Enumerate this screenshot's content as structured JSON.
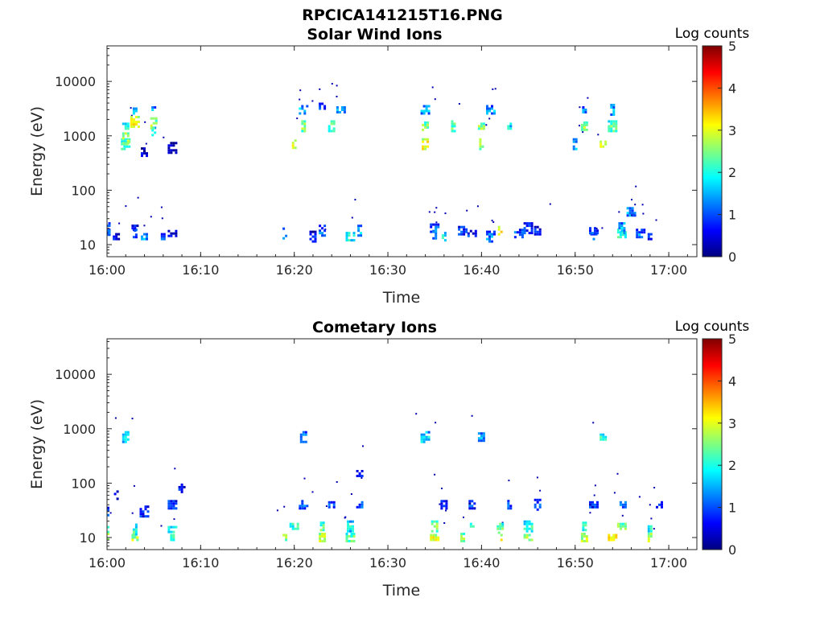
{
  "figure": {
    "title": "RPCICA141215T16.PNG"
  },
  "colors": {
    "colormap": [
      "#00007f",
      "#0000ff",
      "#007fff",
      "#00ffff",
      "#7fff7f",
      "#ffff00",
      "#ff7f00",
      "#ff0000",
      "#7f0000"
    ]
  },
  "chart_data": [
    {
      "type": "heatmap",
      "title": "Solar Wind Ions",
      "xlabel": "Time",
      "ylabel": "Energy (eV)",
      "x_scale": "time",
      "y_scale": "log",
      "xlim": [
        "16:00",
        "17:03"
      ],
      "ylim": [
        6,
        45000
      ],
      "xticks": [
        "16:00",
        "16:10",
        "16:20",
        "16:30",
        "16:40",
        "16:50",
        "17:00"
      ],
      "yticks": [
        "10",
        "100",
        "1000",
        "10000"
      ],
      "colorbar": {
        "label": "Log counts",
        "range": [
          0,
          5
        ],
        "ticks": [
          "0",
          "1",
          "2",
          "3",
          "4",
          "5"
        ]
      },
      "clusters": [
        {
          "t": "16:00",
          "e": 16,
          "v": 1.0
        },
        {
          "t": "16:00",
          "e": 20,
          "v": 1.4
        },
        {
          "t": "16:01",
          "e": 14,
          "v": 0.6
        },
        {
          "t": "16:02",
          "e": 700,
          "v": 2.4
        },
        {
          "t": "16:02",
          "e": 900,
          "v": 3.0
        },
        {
          "t": "16:02",
          "e": 1500,
          "v": 2.2
        },
        {
          "t": "16:03",
          "e": 1800,
          "v": 3.2
        },
        {
          "t": "16:03",
          "e": 3000,
          "v": 1.6
        },
        {
          "t": "16:03",
          "e": 16,
          "v": 1.2
        },
        {
          "t": "16:03",
          "e": 20,
          "v": 0.8
        },
        {
          "t": "16:04",
          "e": 14,
          "v": 1.4
        },
        {
          "t": "16:04",
          "e": 500,
          "v": 0.4
        },
        {
          "t": "16:05",
          "e": 1200,
          "v": 2.0
        },
        {
          "t": "16:05",
          "e": 1700,
          "v": 2.6
        },
        {
          "t": "16:05",
          "e": 3000,
          "v": 1.4
        },
        {
          "t": "16:06",
          "e": 14,
          "v": 1.0
        },
        {
          "t": "16:07",
          "e": 16,
          "v": 0.6
        },
        {
          "t": "16:07",
          "e": 600,
          "v": 0.5
        },
        {
          "t": "16:19",
          "e": 16,
          "v": 1.2
        },
        {
          "t": "16:20",
          "e": 700,
          "v": 2.8
        },
        {
          "t": "16:21",
          "e": 1500,
          "v": 2.6
        },
        {
          "t": "16:21",
          "e": 3000,
          "v": 1.6
        },
        {
          "t": "16:22",
          "e": 14,
          "v": 0.8
        },
        {
          "t": "16:23",
          "e": 18,
          "v": 1.2
        },
        {
          "t": "16:23",
          "e": 3500,
          "v": 1.0
        },
        {
          "t": "16:24",
          "e": 1500,
          "v": 2.4
        },
        {
          "t": "16:25",
          "e": 3000,
          "v": 1.4
        },
        {
          "t": "16:26",
          "e": 14,
          "v": 2.0
        },
        {
          "t": "16:27",
          "e": 18,
          "v": 1.6
        },
        {
          "t": "16:34",
          "e": 700,
          "v": 3.2
        },
        {
          "t": "16:34",
          "e": 1500,
          "v": 2.6
        },
        {
          "t": "16:34",
          "e": 3000,
          "v": 1.4
        },
        {
          "t": "16:35",
          "e": 16,
          "v": 1.6
        },
        {
          "t": "16:35",
          "e": 20,
          "v": 1.2
        },
        {
          "t": "16:36",
          "e": 14,
          "v": 2.0
        },
        {
          "t": "16:37",
          "e": 1500,
          "v": 2.4
        },
        {
          "t": "16:38",
          "e": 18,
          "v": 1.0
        },
        {
          "t": "16:39",
          "e": 16,
          "v": 0.8
        },
        {
          "t": "16:40",
          "e": 700,
          "v": 2.8
        },
        {
          "t": "16:40",
          "e": 1500,
          "v": 2.6
        },
        {
          "t": "16:41",
          "e": 3000,
          "v": 1.4
        },
        {
          "t": "16:41",
          "e": 14,
          "v": 1.4
        },
        {
          "t": "16:42",
          "e": 18,
          "v": 3.0
        },
        {
          "t": "16:43",
          "e": 1500,
          "v": 1.8
        },
        {
          "t": "16:44",
          "e": 16,
          "v": 1.2
        },
        {
          "t": "16:45",
          "e": 20,
          "v": 1.0
        },
        {
          "t": "16:46",
          "e": 18,
          "v": 0.8
        },
        {
          "t": "16:50",
          "e": 700,
          "v": 1.6
        },
        {
          "t": "16:51",
          "e": 1500,
          "v": 2.6
        },
        {
          "t": "16:51",
          "e": 3000,
          "v": 1.2
        },
        {
          "t": "16:52",
          "e": 14,
          "v": 1.2
        },
        {
          "t": "16:52",
          "e": 18,
          "v": 1.0
        },
        {
          "t": "16:53",
          "e": 700,
          "v": 3.2
        },
        {
          "t": "16:54",
          "e": 1500,
          "v": 2.4
        },
        {
          "t": "16:54",
          "e": 3000,
          "v": 1.6
        },
        {
          "t": "16:55",
          "e": 16,
          "v": 2.2
        },
        {
          "t": "16:55",
          "e": 20,
          "v": 1.6
        },
        {
          "t": "16:56",
          "e": 40,
          "v": 1.4
        },
        {
          "t": "16:57",
          "e": 16,
          "v": 1.2
        },
        {
          "t": "16:58",
          "e": 14,
          "v": 0.8
        }
      ]
    },
    {
      "type": "heatmap",
      "title": "Cometary Ions",
      "xlabel": "Time",
      "ylabel": "Energy (eV)",
      "x_scale": "time",
      "y_scale": "log",
      "xlim": [
        "16:00",
        "17:03"
      ],
      "ylim": [
        6,
        45000
      ],
      "xticks": [
        "16:00",
        "16:10",
        "16:20",
        "16:30",
        "16:40",
        "16:50",
        "17:00"
      ],
      "yticks": [
        "10",
        "100",
        "1000",
        "10000"
      ],
      "colorbar": {
        "label": "Log counts",
        "range": [
          0,
          5
        ],
        "ticks": [
          "0",
          "1",
          "2",
          "3",
          "4",
          "5"
        ]
      },
      "clusters": [
        {
          "t": "16:00",
          "e": 10,
          "v": 3.0
        },
        {
          "t": "16:00",
          "e": 14,
          "v": 2.6
        },
        {
          "t": "16:00",
          "e": 30,
          "v": 1.0
        },
        {
          "t": "16:01",
          "e": 60,
          "v": 0.6
        },
        {
          "t": "16:02",
          "e": 700,
          "v": 1.8
        },
        {
          "t": "16:03",
          "e": 10,
          "v": 2.8
        },
        {
          "t": "16:03",
          "e": 14,
          "v": 2.2
        },
        {
          "t": "16:04",
          "e": 30,
          "v": 1.0
        },
        {
          "t": "16:07",
          "e": 10,
          "v": 2.2
        },
        {
          "t": "16:07",
          "e": 14,
          "v": 2.0
        },
        {
          "t": "16:07",
          "e": 40,
          "v": 1.0
        },
        {
          "t": "16:08",
          "e": 80,
          "v": 0.6
        },
        {
          "t": "16:19",
          "e": 10,
          "v": 2.6
        },
        {
          "t": "16:20",
          "e": 16,
          "v": 2.2
        },
        {
          "t": "16:21",
          "e": 40,
          "v": 1.0
        },
        {
          "t": "16:21",
          "e": 700,
          "v": 1.4
        },
        {
          "t": "16:23",
          "e": 10,
          "v": 2.8
        },
        {
          "t": "16:23",
          "e": 16,
          "v": 2.4
        },
        {
          "t": "16:24",
          "e": 40,
          "v": 1.0
        },
        {
          "t": "16:26",
          "e": 10,
          "v": 2.4
        },
        {
          "t": "16:26",
          "e": 16,
          "v": 2.0
        },
        {
          "t": "16:27",
          "e": 40,
          "v": 1.0
        },
        {
          "t": "16:27",
          "e": 150,
          "v": 0.6
        },
        {
          "t": "16:34",
          "e": 700,
          "v": 1.8
        },
        {
          "t": "16:35",
          "e": 10,
          "v": 3.0
        },
        {
          "t": "16:35",
          "e": 16,
          "v": 2.6
        },
        {
          "t": "16:36",
          "e": 40,
          "v": 1.0
        },
        {
          "t": "16:38",
          "e": 10,
          "v": 2.6
        },
        {
          "t": "16:39",
          "e": 16,
          "v": 2.0
        },
        {
          "t": "16:39",
          "e": 40,
          "v": 0.8
        },
        {
          "t": "16:40",
          "e": 700,
          "v": 1.4
        },
        {
          "t": "16:42",
          "e": 10,
          "v": 3.0
        },
        {
          "t": "16:42",
          "e": 16,
          "v": 2.4
        },
        {
          "t": "16:43",
          "e": 40,
          "v": 1.0
        },
        {
          "t": "16:45",
          "e": 10,
          "v": 2.8
        },
        {
          "t": "16:45",
          "e": 16,
          "v": 2.2
        },
        {
          "t": "16:46",
          "e": 40,
          "v": 1.0
        },
        {
          "t": "16:51",
          "e": 10,
          "v": 2.8
        },
        {
          "t": "16:51",
          "e": 16,
          "v": 2.2
        },
        {
          "t": "16:52",
          "e": 40,
          "v": 0.8
        },
        {
          "t": "16:53",
          "e": 700,
          "v": 2.2
        },
        {
          "t": "16:54",
          "e": 10,
          "v": 3.2
        },
        {
          "t": "16:55",
          "e": 16,
          "v": 2.6
        },
        {
          "t": "16:55",
          "e": 40,
          "v": 1.2
        },
        {
          "t": "16:58",
          "e": 10,
          "v": 2.8
        },
        {
          "t": "16:58",
          "e": 16,
          "v": 2.0
        },
        {
          "t": "16:59",
          "e": 40,
          "v": 1.0
        }
      ]
    }
  ]
}
